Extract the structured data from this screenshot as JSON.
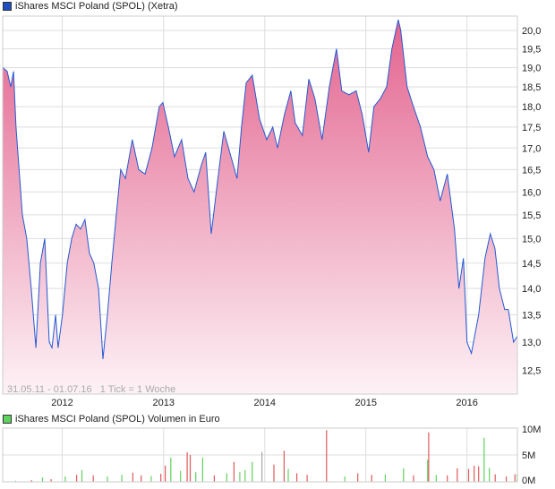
{
  "price_legend": {
    "label": "iShares MSCI Poland (SPOL) (Xetra)",
    "color": "#1e4fc2"
  },
  "volume_legend": {
    "label": "iShares MSCI Poland (SPOL) Volumen in Euro",
    "color": "#5fd35f"
  },
  "info_text": "31.05.11 - 01.07.16   1 Tick = 1 Woche",
  "colors": {
    "line": "#2459d1",
    "fill_top": "#e3648f",
    "fill_bottom": "#fdf2f6",
    "vol_up": "#5fd35f",
    "vol_down": "#e05a5a",
    "vol_neutral": "#aaaaaa",
    "grid": "#dddddd"
  },
  "chart_data": [
    {
      "type": "area",
      "title": "iShares MSCI Poland (SPOL) (Xetra)",
      "y_scale": "log",
      "ylim": [
        12.1,
        20.4
      ],
      "xlim": [
        "2011-05-31",
        "2016-07-01"
      ],
      "grid": true,
      "y_ticks": [
        "12,5",
        "13,0",
        "13,5",
        "14,0",
        "14,5",
        "15,0",
        "15,5",
        "16,0",
        "16,5",
        "17,0",
        "17,5",
        "18,0",
        "18,5",
        "19,0",
        "19,5",
        "20,0"
      ],
      "x_ticks": [
        "2012",
        "2013",
        "2014",
        "2015",
        "2016"
      ],
      "points": [
        [
          "2011-05-31",
          19.0
        ],
        [
          "2011-06-16",
          18.9
        ],
        [
          "2011-06-29",
          18.5
        ],
        [
          "2011-07-09",
          18.9
        ],
        [
          "2011-07-18",
          17.5
        ],
        [
          "2011-08-10",
          15.5
        ],
        [
          "2011-08-26",
          15.0
        ],
        [
          "2011-09-11",
          14.0
        ],
        [
          "2011-09-28",
          12.9
        ],
        [
          "2011-10-14",
          14.5
        ],
        [
          "2011-10-30",
          15.0
        ],
        [
          "2011-11-15",
          13.0
        ],
        [
          "2011-11-25",
          12.9
        ],
        [
          "2011-12-08",
          13.5
        ],
        [
          "2011-12-17",
          12.9
        ],
        [
          "2012-01-02",
          13.5
        ],
        [
          "2012-01-19",
          14.5
        ],
        [
          "2012-02-04",
          15.0
        ],
        [
          "2012-02-20",
          15.3
        ],
        [
          "2012-03-07",
          15.2
        ],
        [
          "2012-03-23",
          15.4
        ],
        [
          "2012-04-08",
          14.7
        ],
        [
          "2012-04-24",
          14.5
        ],
        [
          "2012-05-11",
          14.0
        ],
        [
          "2012-05-27",
          12.7
        ],
        [
          "2012-06-12",
          13.5
        ],
        [
          "2012-06-28",
          14.5
        ],
        [
          "2012-07-14",
          15.5
        ],
        [
          "2012-07-30",
          16.5
        ],
        [
          "2012-08-16",
          16.3
        ],
        [
          "2012-09-10",
          17.2
        ],
        [
          "2012-10-03",
          16.5
        ],
        [
          "2012-10-26",
          16.4
        ],
        [
          "2012-11-20",
          17.0
        ],
        [
          "2012-12-16",
          18.0
        ],
        [
          "2012-12-29",
          18.1
        ],
        [
          "2013-01-18",
          17.5
        ],
        [
          "2013-02-09",
          16.8
        ],
        [
          "2013-03-07",
          17.2
        ],
        [
          "2013-03-30",
          16.3
        ],
        [
          "2013-04-21",
          16.0
        ],
        [
          "2013-05-17",
          16.6
        ],
        [
          "2013-06-02",
          16.9
        ],
        [
          "2013-06-22",
          15.1
        ],
        [
          "2013-07-14",
          16.2
        ],
        [
          "2013-08-06",
          17.4
        ],
        [
          "2013-09-01",
          16.8
        ],
        [
          "2013-09-23",
          16.3
        ],
        [
          "2013-10-09",
          17.5
        ],
        [
          "2013-10-26",
          18.6
        ],
        [
          "2013-11-17",
          18.8
        ],
        [
          "2013-12-13",
          17.7
        ],
        [
          "2014-01-08",
          17.2
        ],
        [
          "2014-01-30",
          17.5
        ],
        [
          "2014-02-16",
          17.0
        ],
        [
          "2014-03-13",
          17.8
        ],
        [
          "2014-04-05",
          18.4
        ],
        [
          "2014-04-21",
          17.6
        ],
        [
          "2014-05-17",
          17.3
        ],
        [
          "2014-06-09",
          18.7
        ],
        [
          "2014-07-01",
          18.2
        ],
        [
          "2014-07-27",
          17.2
        ],
        [
          "2014-08-22",
          18.5
        ],
        [
          "2014-09-17",
          19.5
        ],
        [
          "2014-10-06",
          18.4
        ],
        [
          "2014-11-01",
          18.3
        ],
        [
          "2014-11-27",
          18.4
        ],
        [
          "2014-12-19",
          17.8
        ],
        [
          "2015-01-11",
          16.9
        ],
        [
          "2015-01-30",
          18.0
        ],
        [
          "2015-02-22",
          18.2
        ],
        [
          "2015-03-17",
          18.5
        ],
        [
          "2015-04-05",
          19.5
        ],
        [
          "2015-04-28",
          20.3
        ],
        [
          "2015-05-07",
          20.0
        ],
        [
          "2015-05-30",
          18.5
        ],
        [
          "2015-06-22",
          18.0
        ],
        [
          "2015-07-17",
          17.5
        ],
        [
          "2015-08-12",
          16.8
        ],
        [
          "2015-09-04",
          16.5
        ],
        [
          "2015-09-26",
          15.8
        ],
        [
          "2015-10-22",
          16.4
        ],
        [
          "2015-11-17",
          15.2
        ],
        [
          "2015-12-03",
          14.0
        ],
        [
          "2015-12-19",
          14.6
        ],
        [
          "2016-01-01",
          13.0
        ],
        [
          "2016-01-17",
          12.8
        ],
        [
          "2016-02-12",
          13.5
        ],
        [
          "2016-03-06",
          14.6
        ],
        [
          "2016-03-25",
          15.1
        ],
        [
          "2016-04-11",
          14.8
        ],
        [
          "2016-04-27",
          14.0
        ],
        [
          "2016-05-16",
          13.6
        ],
        [
          "2016-05-29",
          13.6
        ],
        [
          "2016-06-17",
          13.0
        ],
        [
          "2016-06-30",
          13.1
        ]
      ]
    },
    {
      "type": "bar",
      "title": "iShares MSCI Poland (SPOL) Volumen in Euro",
      "ylim": [
        0,
        10
      ],
      "unit": "M",
      "y_ticks": [
        "0M",
        "5M",
        "10M"
      ],
      "bars": [
        [
          "2011-07-15",
          0.2,
          "up"
        ],
        [
          "2011-09-10",
          0.3,
          "down"
        ],
        [
          "2011-10-20",
          0.8,
          "up"
        ],
        [
          "2011-11-20",
          0.5,
          "down"
        ],
        [
          "2012-01-10",
          1.0,
          "up"
        ],
        [
          "2012-02-20",
          1.3,
          "down"
        ],
        [
          "2012-03-10",
          2.2,
          "up"
        ],
        [
          "2012-04-20",
          1.2,
          "down"
        ],
        [
          "2012-06-10",
          1.0,
          "up"
        ],
        [
          "2012-08-01",
          1.3,
          "up"
        ],
        [
          "2012-09-10",
          1.7,
          "down"
        ],
        [
          "2012-10-10",
          1.2,
          "down"
        ],
        [
          "2012-11-15",
          1.1,
          "up"
        ],
        [
          "2012-12-20",
          1.5,
          "down"
        ],
        [
          "2013-01-05",
          3.0,
          "down"
        ],
        [
          "2013-01-25",
          4.5,
          "up"
        ],
        [
          "2013-03-01",
          2.0,
          "up"
        ],
        [
          "2013-03-25",
          5.5,
          "down"
        ],
        [
          "2013-04-05",
          5.0,
          "down"
        ],
        [
          "2013-04-25",
          1.8,
          "up"
        ],
        [
          "2013-05-20",
          4.5,
          "up"
        ],
        [
          "2013-07-01",
          1.2,
          "down"
        ],
        [
          "2013-08-15",
          1.6,
          "up"
        ],
        [
          "2013-09-10",
          3.7,
          "down"
        ],
        [
          "2013-10-01",
          1.8,
          "up"
        ],
        [
          "2013-10-20",
          2.2,
          "up"
        ],
        [
          "2013-11-15",
          3.7,
          "up"
        ],
        [
          "2013-12-20",
          5.6,
          "neutral"
        ],
        [
          "2014-02-01",
          3.2,
          "down"
        ],
        [
          "2014-03-10",
          5.8,
          "down"
        ],
        [
          "2014-03-25",
          2.4,
          "up"
        ],
        [
          "2014-04-25",
          1.6,
          "down"
        ],
        [
          "2014-06-01",
          1.3,
          "down"
        ],
        [
          "2014-08-10",
          9.6,
          "down"
        ],
        [
          "2014-10-15",
          1.0,
          "up"
        ],
        [
          "2014-12-01",
          1.6,
          "down"
        ],
        [
          "2015-01-20",
          1.3,
          "down"
        ],
        [
          "2015-03-10",
          1.4,
          "up"
        ],
        [
          "2015-05-15",
          2.5,
          "up"
        ],
        [
          "2015-06-20",
          1.2,
          "down"
        ],
        [
          "2015-08-10",
          4.1,
          "up"
        ],
        [
          "2015-08-14",
          9.2,
          "down"
        ],
        [
          "2015-09-10",
          1.3,
          "up"
        ],
        [
          "2015-10-20",
          1.2,
          "down"
        ],
        [
          "2015-11-25",
          2.5,
          "down"
        ],
        [
          "2016-01-05",
          2.4,
          "down"
        ],
        [
          "2016-01-25",
          3.0,
          "down"
        ],
        [
          "2016-02-10",
          2.9,
          "down"
        ],
        [
          "2016-03-01",
          8.2,
          "up"
        ],
        [
          "2016-03-20",
          2.6,
          "up"
        ],
        [
          "2016-04-10",
          1.4,
          "down"
        ],
        [
          "2016-05-20",
          1.0,
          "down"
        ],
        [
          "2016-06-20",
          1.4,
          "down"
        ],
        [
          "2016-06-28",
          1.5,
          "up"
        ]
      ]
    }
  ]
}
